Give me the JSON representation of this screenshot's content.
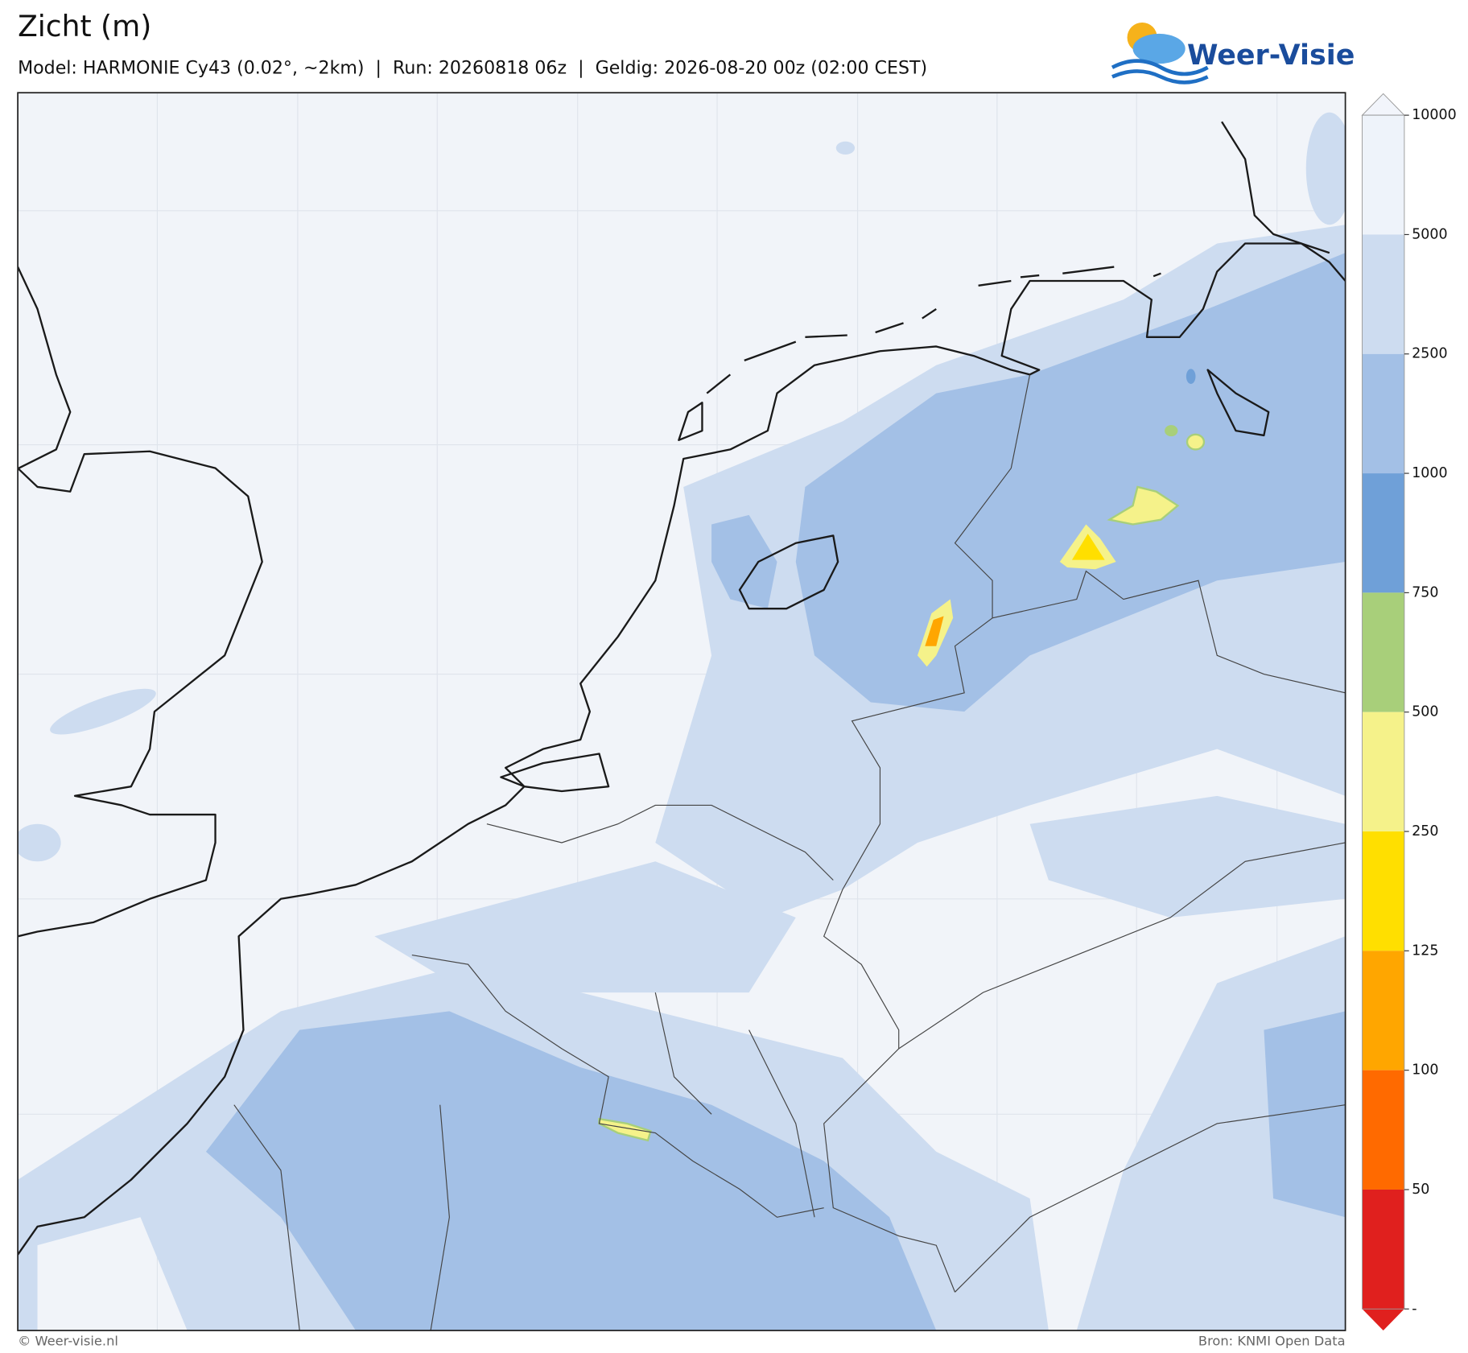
{
  "header": {
    "title": "Zicht (m)",
    "subtitle": "Model: HARMONIE Cy43 (0.02°, ~2km)  |  Run: 20260818 06z  |  Geldig: 2026-08-20 00z (02:00 CEST)",
    "logo": "Weer-Visie"
  },
  "colorbar": {
    "levels": [
      10000,
      5000,
      2500,
      1000,
      750,
      500,
      250,
      125,
      100,
      50
    ],
    "colors": [
      "#eef3fa",
      "#cddcf0",
      "#a3c0e6",
      "#6fa0d8",
      "#a8cf7a",
      "#f5f28a",
      "#ffdf00",
      "#ffa600",
      "#ff6a00",
      "#e0201e"
    ],
    "over_color": "#f2f5fb",
    "bottom_label": "-"
  },
  "footer": {
    "left": "© Weer-visie.nl",
    "right": "Bron: KNMI Open Data"
  }
}
